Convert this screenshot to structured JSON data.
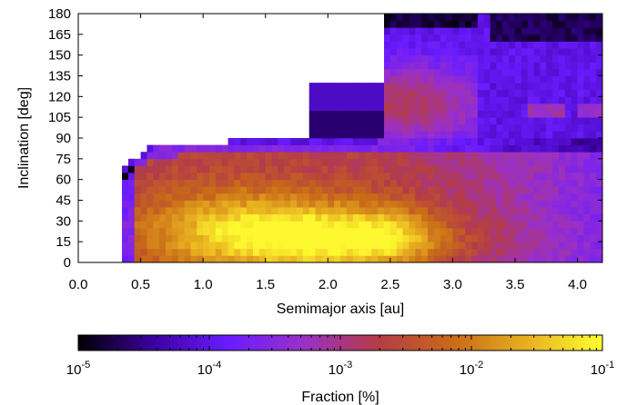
{
  "chart_data": {
    "type": "heatmap",
    "xlabel": "Semimajor axis [au]",
    "ylabel": "Inclination [deg]",
    "xlim": [
      0.0,
      4.2
    ],
    "ylim": [
      0,
      180
    ],
    "xticks": [
      "0.0",
      "0.5",
      "1.0",
      "1.5",
      "2.0",
      "2.5",
      "3.0",
      "3.5",
      "4.0"
    ],
    "xtick_values": [
      0.0,
      0.5,
      1.0,
      1.5,
      2.0,
      2.5,
      3.0,
      3.5,
      4.0
    ],
    "yticks": [
      "0",
      "15",
      "30",
      "45",
      "60",
      "75",
      "90",
      "105",
      "120",
      "135",
      "150",
      "165",
      "180"
    ],
    "ytick_values": [
      0,
      15,
      30,
      45,
      60,
      75,
      90,
      105,
      120,
      135,
      150,
      165,
      180
    ],
    "colorbar": {
      "label": "Fraction [%]",
      "scale": "log",
      "min_exponent": -5,
      "max_exponent": -1,
      "tick_exponents": [
        -5,
        -4,
        -3,
        -2,
        -1
      ],
      "colormap": [
        "#000000",
        "#3c00a0",
        "#6a1cff",
        "#9a30c8",
        "#b43c46",
        "#c86a18",
        "#e8b020",
        "#ffff30"
      ]
    },
    "grid": false,
    "legend": "none"
  }
}
